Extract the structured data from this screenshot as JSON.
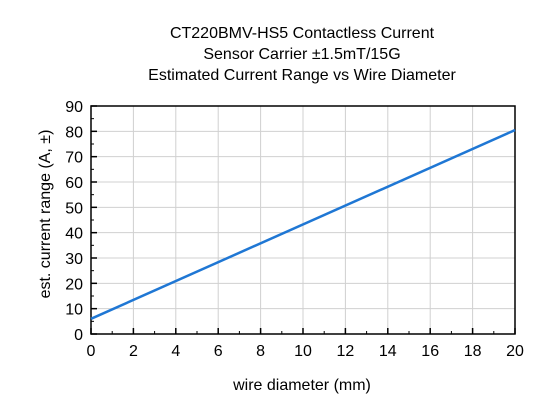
{
  "chart_data": {
    "type": "line",
    "title_lines": [
      "CT220BMV-HS5 Contactless Current",
      "Sensor Carrier ±1.5mT/15G",
      "Estimated Current Range vs Wire Diameter"
    ],
    "xlabel": "wire diameter (mm)",
    "ylabel": "est. current range (A, ±)",
    "xlim": [
      0,
      20
    ],
    "ylim": [
      0,
      90
    ],
    "x_ticks": [
      0,
      2,
      4,
      6,
      8,
      10,
      12,
      14,
      16,
      18,
      20
    ],
    "x_tick_labels": [
      "0",
      "2",
      "4",
      "6",
      "8",
      "10",
      "12",
      "14",
      "16",
      "18",
      "20"
    ],
    "y_ticks": [
      0,
      10,
      20,
      30,
      40,
      50,
      60,
      70,
      80,
      90
    ],
    "y_tick_labels": [
      "0",
      "10",
      "20",
      "30",
      "40",
      "50",
      "60",
      "70",
      "80",
      "90"
    ],
    "grid": true,
    "legend": "none",
    "line_color": "#1f77d4",
    "series": [
      {
        "x": [
          0,
          20
        ],
        "y": [
          6,
          80.5
        ]
      }
    ]
  }
}
